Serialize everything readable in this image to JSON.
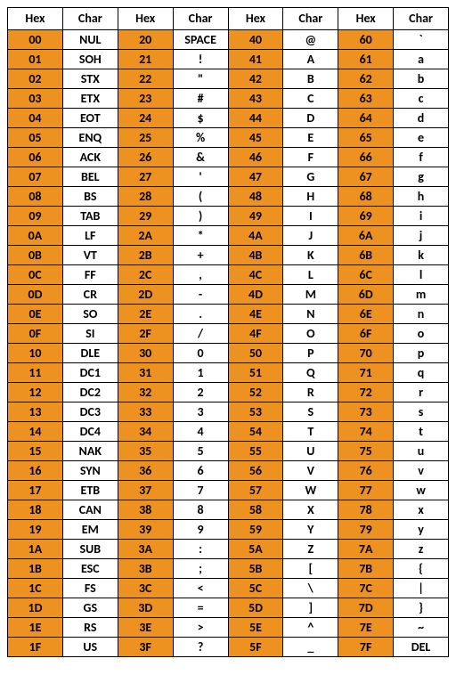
{
  "table": {
    "headers": [
      "Hex",
      "Char",
      "Hex",
      "Char",
      "Hex",
      "Char",
      "Hex",
      "Char"
    ],
    "hex_bg": "#ed9121",
    "char_bg": "#ffffff",
    "border_color": "#000000",
    "font_size": 14,
    "font_weight": "bold",
    "col1": [
      {
        "hex": "00",
        "char": "NUL"
      },
      {
        "hex": "01",
        "char": "SOH"
      },
      {
        "hex": "02",
        "char": "STX"
      },
      {
        "hex": "03",
        "char": "ETX"
      },
      {
        "hex": "04",
        "char": "EOT"
      },
      {
        "hex": "05",
        "char": "ENQ"
      },
      {
        "hex": "06",
        "char": "ACK"
      },
      {
        "hex": "07",
        "char": "BEL"
      },
      {
        "hex": "08",
        "char": "BS"
      },
      {
        "hex": "09",
        "char": "TAB"
      },
      {
        "hex": "0A",
        "char": "LF"
      },
      {
        "hex": "0B",
        "char": "VT"
      },
      {
        "hex": "0C",
        "char": "FF"
      },
      {
        "hex": "0D",
        "char": "CR"
      },
      {
        "hex": "0E",
        "char": "SO"
      },
      {
        "hex": "0F",
        "char": "SI"
      },
      {
        "hex": "10",
        "char": "DLE"
      },
      {
        "hex": "11",
        "char": "DC1"
      },
      {
        "hex": "12",
        "char": "DC2"
      },
      {
        "hex": "13",
        "char": "DC3"
      },
      {
        "hex": "14",
        "char": "DC4"
      },
      {
        "hex": "15",
        "char": "NAK"
      },
      {
        "hex": "16",
        "char": "SYN"
      },
      {
        "hex": "17",
        "char": "ETB"
      },
      {
        "hex": "18",
        "char": "CAN"
      },
      {
        "hex": "19",
        "char": "EM"
      },
      {
        "hex": "1A",
        "char": "SUB"
      },
      {
        "hex": "1B",
        "char": "ESC"
      },
      {
        "hex": "1C",
        "char": "FS"
      },
      {
        "hex": "1D",
        "char": "GS"
      },
      {
        "hex": "1E",
        "char": "RS"
      },
      {
        "hex": "1F",
        "char": "US"
      }
    ],
    "col2": [
      {
        "hex": "20",
        "char": "SPACE"
      },
      {
        "hex": "21",
        "char": "!"
      },
      {
        "hex": "22",
        "char": "\""
      },
      {
        "hex": "23",
        "char": "#"
      },
      {
        "hex": "24",
        "char": "$"
      },
      {
        "hex": "25",
        "char": "%"
      },
      {
        "hex": "26",
        "char": "&"
      },
      {
        "hex": "27",
        "char": "'"
      },
      {
        "hex": "28",
        "char": "("
      },
      {
        "hex": "29",
        "char": ")"
      },
      {
        "hex": "2A",
        "char": "*"
      },
      {
        "hex": "2B",
        "char": "+"
      },
      {
        "hex": "2C",
        "char": ","
      },
      {
        "hex": "2D",
        "char": "-"
      },
      {
        "hex": "2E",
        "char": "."
      },
      {
        "hex": "2F",
        "char": "/"
      },
      {
        "hex": "30",
        "char": "0"
      },
      {
        "hex": "31",
        "char": "1"
      },
      {
        "hex": "32",
        "char": "2"
      },
      {
        "hex": "33",
        "char": "3"
      },
      {
        "hex": "34",
        "char": "4"
      },
      {
        "hex": "35",
        "char": "5"
      },
      {
        "hex": "36",
        "char": "6"
      },
      {
        "hex": "37",
        "char": "7"
      },
      {
        "hex": "38",
        "char": "8"
      },
      {
        "hex": "39",
        "char": "9"
      },
      {
        "hex": "3A",
        "char": ":"
      },
      {
        "hex": "3B",
        "char": ";"
      },
      {
        "hex": "3C",
        "char": "<"
      },
      {
        "hex": "3D",
        "char": "="
      },
      {
        "hex": "3E",
        "char": ">"
      },
      {
        "hex": "3F",
        "char": "?"
      }
    ],
    "col3": [
      {
        "hex": "40",
        "char": "@"
      },
      {
        "hex": "41",
        "char": "A"
      },
      {
        "hex": "42",
        "char": "B"
      },
      {
        "hex": "43",
        "char": "C"
      },
      {
        "hex": "44",
        "char": "D"
      },
      {
        "hex": "45",
        "char": "E"
      },
      {
        "hex": "46",
        "char": "F"
      },
      {
        "hex": "47",
        "char": "G"
      },
      {
        "hex": "48",
        "char": "H"
      },
      {
        "hex": "49",
        "char": "I"
      },
      {
        "hex": "4A",
        "char": "J"
      },
      {
        "hex": "4B",
        "char": "K"
      },
      {
        "hex": "4C",
        "char": "L"
      },
      {
        "hex": "4D",
        "char": "M"
      },
      {
        "hex": "4E",
        "char": "N"
      },
      {
        "hex": "4F",
        "char": "O"
      },
      {
        "hex": "50",
        "char": "P"
      },
      {
        "hex": "51",
        "char": "Q"
      },
      {
        "hex": "52",
        "char": "R"
      },
      {
        "hex": "53",
        "char": "S"
      },
      {
        "hex": "54",
        "char": "T"
      },
      {
        "hex": "55",
        "char": "U"
      },
      {
        "hex": "56",
        "char": "V"
      },
      {
        "hex": "57",
        "char": "W"
      },
      {
        "hex": "58",
        "char": "X"
      },
      {
        "hex": "59",
        "char": "Y"
      },
      {
        "hex": "5A",
        "char": "Z"
      },
      {
        "hex": "5B",
        "char": "["
      },
      {
        "hex": "5C",
        "char": "\\"
      },
      {
        "hex": "5D",
        "char": "]"
      },
      {
        "hex": "5E",
        "char": "^"
      },
      {
        "hex": "5F",
        "char": "_"
      }
    ],
    "col4": [
      {
        "hex": "60",
        "char": "`"
      },
      {
        "hex": "61",
        "char": "a"
      },
      {
        "hex": "62",
        "char": "b"
      },
      {
        "hex": "63",
        "char": "c"
      },
      {
        "hex": "64",
        "char": "d"
      },
      {
        "hex": "65",
        "char": "e"
      },
      {
        "hex": "66",
        "char": "f"
      },
      {
        "hex": "67",
        "char": "g"
      },
      {
        "hex": "68",
        "char": "h"
      },
      {
        "hex": "69",
        "char": "i"
      },
      {
        "hex": "6A",
        "char": "j"
      },
      {
        "hex": "6B",
        "char": "k"
      },
      {
        "hex": "6C",
        "char": "l"
      },
      {
        "hex": "6D",
        "char": "m"
      },
      {
        "hex": "6E",
        "char": "n"
      },
      {
        "hex": "6F",
        "char": "o"
      },
      {
        "hex": "70",
        "char": "p"
      },
      {
        "hex": "71",
        "char": "q"
      },
      {
        "hex": "72",
        "char": "r"
      },
      {
        "hex": "73",
        "char": "s"
      },
      {
        "hex": "74",
        "char": "t"
      },
      {
        "hex": "75",
        "char": "u"
      },
      {
        "hex": "76",
        "char": "v"
      },
      {
        "hex": "77",
        "char": "w"
      },
      {
        "hex": "78",
        "char": "x"
      },
      {
        "hex": "79",
        "char": "y"
      },
      {
        "hex": "7A",
        "char": "z"
      },
      {
        "hex": "7B",
        "char": "{"
      },
      {
        "hex": "7C",
        "char": "|"
      },
      {
        "hex": "7D",
        "char": "}"
      },
      {
        "hex": "7E",
        "char": "~"
      },
      {
        "hex": "7F",
        "char": "DEL"
      }
    ]
  }
}
